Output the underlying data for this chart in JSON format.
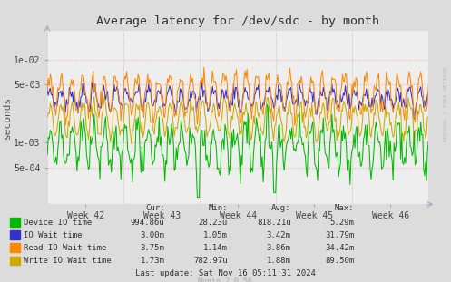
{
  "title": "Average latency for /dev/sdc - by month",
  "ylabel": "seconds",
  "xtick_labels": [
    "Week 42",
    "Week 43",
    "Week 44",
    "Week 45",
    "Week 46"
  ],
  "ytick_values": [
    0.0005,
    0.001,
    0.005,
    0.01
  ],
  "ytick_labels": [
    "5e-04",
    "1e-03",
    "5e-03",
    "1e-02"
  ],
  "background_color": "#dcdcdc",
  "plot_background": "#eeeeee",
  "hgrid_color": "#ffaaaa",
  "vgrid_color": "#bbbbbb",
  "line_colors": {
    "device_io": "#00bb00",
    "io_wait": "#3333cc",
    "read_io_wait": "#ff8800",
    "write_io_wait": "#ccaa00"
  },
  "legend": [
    {
      "label": "Device IO time",
      "color": "#00bb00"
    },
    {
      "label": "IO Wait time",
      "color": "#3333cc"
    },
    {
      "label": "Read IO Wait time",
      "color": "#ff8800"
    },
    {
      "label": "Write IO Wait time",
      "color": "#ccaa00"
    }
  ],
  "stats_headers": [
    "Cur:",
    "Min:",
    "Avg:",
    "Max:"
  ],
  "stats_rows": [
    [
      "Device IO time",
      "994.86u",
      "28.23u",
      "818.21u",
      "5.29m"
    ],
    [
      "IO Wait time",
      "3.00m",
      "1.05m",
      "3.42m",
      "31.79m"
    ],
    [
      "Read IO Wait time",
      "3.75m",
      "1.14m",
      "3.86m",
      "34.42m"
    ],
    [
      "Write IO Wait time",
      "1.73m",
      "782.97u",
      "1.88m",
      "89.50m"
    ]
  ],
  "last_update": "Last update: Sat Nov 16 05:11:31 2024",
  "munin_version": "Munin 2.0.56",
  "rrdtool_label": "RRDTOOL / TOBI OETIKER",
  "n_points": 400,
  "seed": 7,
  "io_wait_base": 0.0035,
  "io_wait_amp": 0.0008,
  "read_io_base": 0.0042,
  "read_io_amp": 0.002,
  "write_io_base": 0.002,
  "write_io_amp": 0.0008,
  "device_io_base": 0.00095,
  "device_io_amp": 0.00045,
  "cycle_per_week": 7,
  "n_weeks": 5
}
